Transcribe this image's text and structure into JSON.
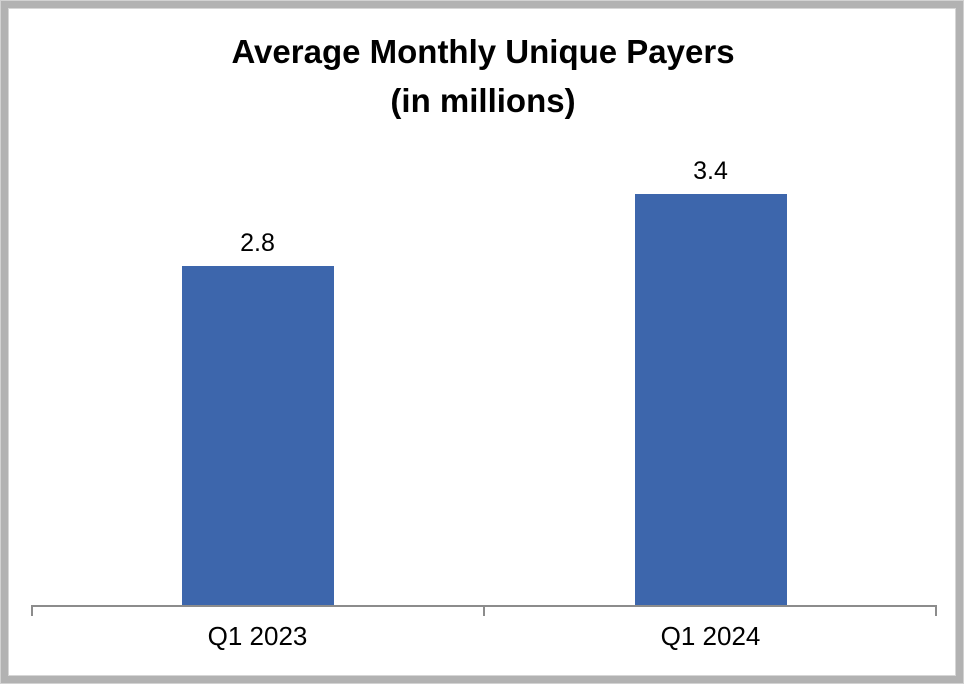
{
  "title": {
    "line1": "Average Monthly Unique Payers",
    "line2": "(in millions)"
  },
  "colors": {
    "bar": "#3D66AC",
    "axis": "#8C8C8C",
    "text": "#000000",
    "frame_border": "#B2B2B2"
  },
  "chart_data": {
    "type": "bar",
    "title": "Average Monthly Unique Payers (in millions)",
    "categories": [
      "Q1 2023",
      "Q1 2024"
    ],
    "values": [
      2.8,
      3.4
    ],
    "data_labels": [
      "2.8",
      "3.4"
    ],
    "series": [
      {
        "name": "Average Monthly Unique Payers (millions)",
        "values": [
          2.8,
          3.4
        ]
      }
    ],
    "xlabel": "",
    "ylabel": "",
    "ylim": [
      0,
      4
    ],
    "grid": false,
    "legend": false,
    "y_axis_visible": false,
    "bar_color": "#3D66AC"
  }
}
